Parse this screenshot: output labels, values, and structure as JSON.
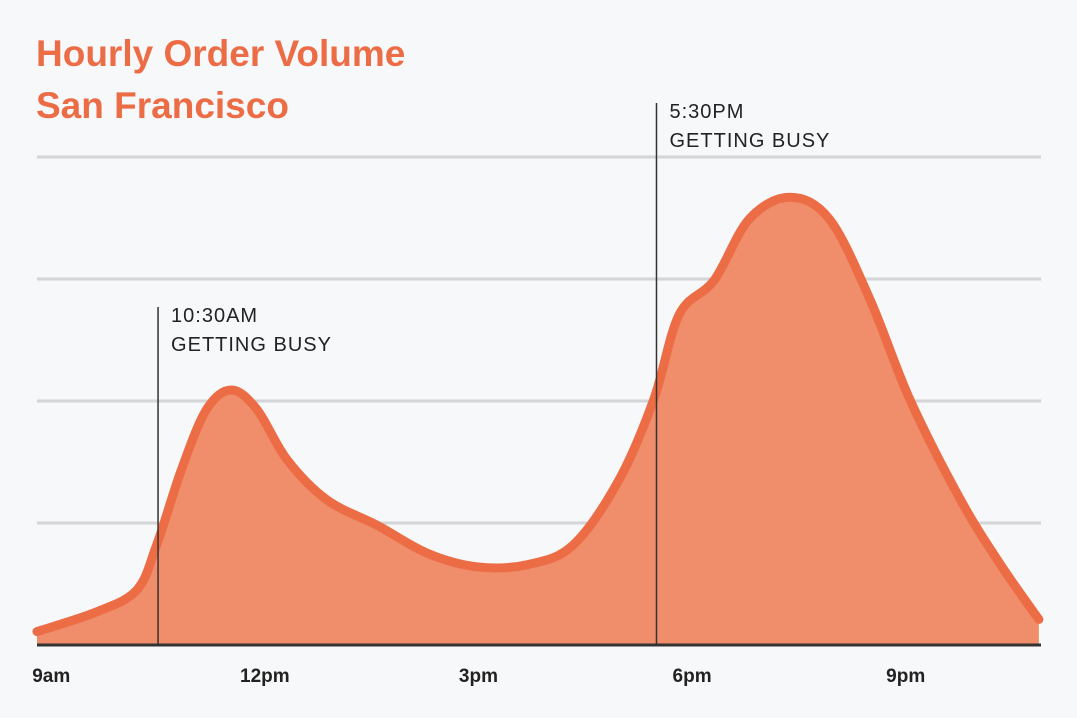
{
  "chart_data": {
    "type": "area",
    "title": "Hourly Order Volume",
    "subtitle": "San Francisco",
    "x": [
      8.8,
      9.63,
      10.2,
      10.48,
      10.83,
      11.18,
      11.53,
      11.89,
      12.31,
      12.87,
      13.58,
      14.29,
      14.99,
      15.7,
      16.33,
      16.97,
      17.46,
      17.82,
      18.31,
      18.8,
      19.37,
      19.93,
      20.5,
      21.06,
      21.77,
      22.33,
      22.87
    ],
    "series": [
      {
        "color": "#ec6d45",
        "values": [
          0.11,
          0.27,
          0.45,
          0.82,
          1.44,
          1.93,
          2.09,
          1.93,
          1.52,
          1.19,
          0.98,
          0.75,
          0.64,
          0.66,
          0.82,
          1.35,
          2.01,
          2.71,
          2.99,
          3.49,
          3.67,
          3.49,
          2.83,
          2.01,
          1.19,
          0.66,
          0.21
        ]
      }
    ],
    "xlim": [
      8.8,
      22.9
    ],
    "xticks": [
      {
        "value": 9,
        "label": "9am"
      },
      {
        "value": 12,
        "label": "12pm"
      },
      {
        "value": 15,
        "label": "3pm"
      },
      {
        "value": 18,
        "label": "6pm"
      },
      {
        "value": 21,
        "label": "9pm"
      }
    ],
    "ylim": [
      0,
      4
    ],
    "yticks": [
      1,
      2,
      3,
      4
    ],
    "grid": true,
    "fill_color": "#f08d6b",
    "annotations": [
      {
        "x": 10.5,
        "lines": [
          "10:30AM",
          "GETTING BUSY"
        ]
      },
      {
        "x": 17.5,
        "lines": [
          "5:30PM",
          "GETTING BUSY"
        ]
      }
    ]
  }
}
